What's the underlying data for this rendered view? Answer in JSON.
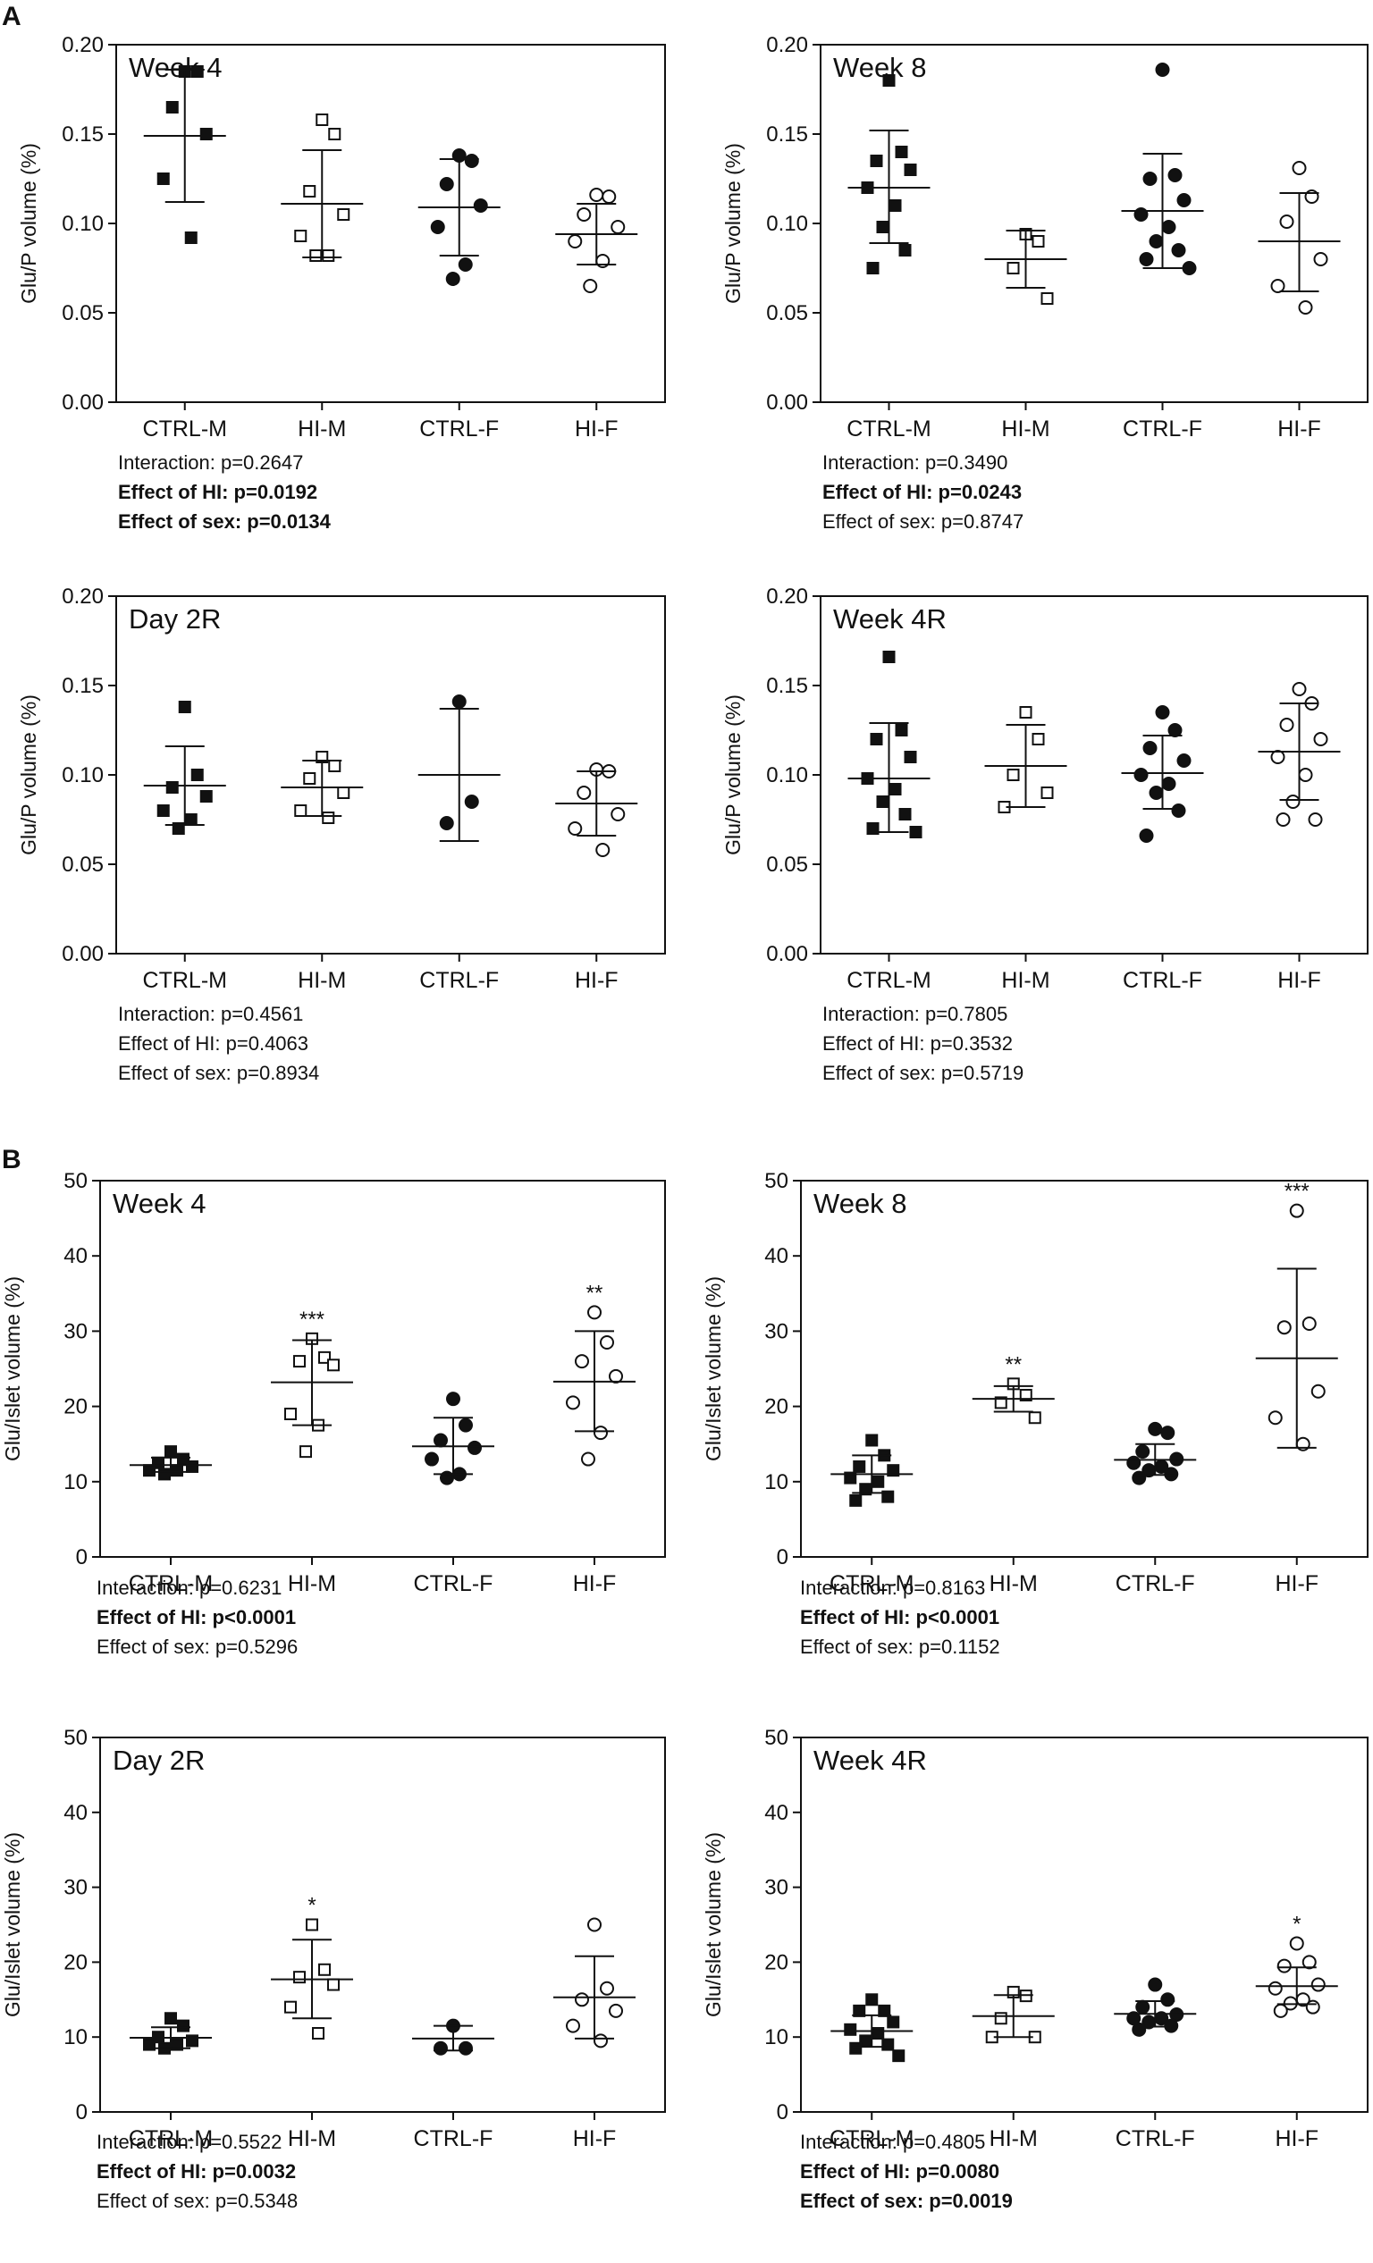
{
  "section_labels": [
    "A",
    "B"
  ],
  "chart_data": [
    {
      "type": "scatter",
      "section": "A",
      "title": "Week 4",
      "ylabel": "Glu/P volume (%)",
      "ylim": [
        0,
        0.2
      ],
      "yticks": [
        "0.00",
        "0.05",
        "0.10",
        "0.15",
        "0.20"
      ],
      "categories": [
        "CTRL-M",
        "HI-M",
        "CTRL-F",
        "HI-F"
      ],
      "groups": [
        {
          "name": "CTRL-M",
          "marker": "square-filled",
          "points": [
            0.185,
            0.185,
            0.165,
            0.15,
            0.125,
            0.092
          ],
          "mean": 0.149,
          "sd_low": 0.112,
          "sd_high": 0.186,
          "sig": ""
        },
        {
          "name": "HI-M",
          "marker": "square-open",
          "points": [
            0.158,
            0.15,
            0.118,
            0.105,
            0.093,
            0.082,
            0.082
          ],
          "mean": 0.111,
          "sd_low": 0.081,
          "sd_high": 0.141,
          "sig": ""
        },
        {
          "name": "CTRL-F",
          "marker": "circle-filled",
          "points": [
            0.138,
            0.135,
            0.122,
            0.11,
            0.098,
            0.077,
            0.069
          ],
          "mean": 0.109,
          "sd_low": 0.082,
          "sd_high": 0.136,
          "sig": ""
        },
        {
          "name": "HI-F",
          "marker": "circle-open",
          "points": [
            0.116,
            0.115,
            0.105,
            0.098,
            0.09,
            0.079,
            0.065
          ],
          "mean": 0.094,
          "sd_low": 0.077,
          "sd_high": 0.111,
          "sig": ""
        }
      ],
      "stats": [
        {
          "text": "Interaction: p=0.2647",
          "bold": false
        },
        {
          "text": "Effect of HI: p=0.0192",
          "bold": true
        },
        {
          "text": "Effect of sex: p=0.0134",
          "bold": true
        }
      ]
    },
    {
      "type": "scatter",
      "section": "A",
      "title": "Week 8",
      "ylabel": "Glu/P volume (%)",
      "ylim": [
        0,
        0.2
      ],
      "yticks": [
        "0.00",
        "0.05",
        "0.10",
        "0.15",
        "0.20"
      ],
      "categories": [
        "CTRL-M",
        "HI-M",
        "CTRL-F",
        "HI-F"
      ],
      "groups": [
        {
          "name": "CTRL-M",
          "marker": "square-filled",
          "points": [
            0.18,
            0.14,
            0.135,
            0.13,
            0.12,
            0.11,
            0.098,
            0.085,
            0.075
          ],
          "mean": 0.12,
          "sd_low": 0.089,
          "sd_high": 0.152,
          "sig": ""
        },
        {
          "name": "HI-M",
          "marker": "square-open",
          "points": [
            0.094,
            0.09,
            0.075,
            0.058
          ],
          "mean": 0.08,
          "sd_low": 0.064,
          "sd_high": 0.096,
          "sig": ""
        },
        {
          "name": "CTRL-F",
          "marker": "circle-filled",
          "points": [
            0.186,
            0.127,
            0.125,
            0.113,
            0.105,
            0.098,
            0.09,
            0.085,
            0.08,
            0.075
          ],
          "mean": 0.107,
          "sd_low": 0.075,
          "sd_high": 0.139,
          "sig": ""
        },
        {
          "name": "HI-F",
          "marker": "circle-open",
          "points": [
            0.131,
            0.115,
            0.101,
            0.08,
            0.065,
            0.053
          ],
          "mean": 0.09,
          "sd_low": 0.062,
          "sd_high": 0.117,
          "sig": ""
        }
      ],
      "stats": [
        {
          "text": "Interaction: p=0.3490",
          "bold": false
        },
        {
          "text": "Effect of HI: p=0.0243",
          "bold": true
        },
        {
          "text": "Effect of sex: p=0.8747",
          "bold": false
        }
      ]
    },
    {
      "type": "scatter",
      "section": "A",
      "title": "Day 2R",
      "ylabel": "Glu/P volume (%)",
      "ylim": [
        0,
        0.2
      ],
      "yticks": [
        "0.00",
        "0.05",
        "0.10",
        "0.15",
        "0.20"
      ],
      "categories": [
        "CTRL-M",
        "HI-M",
        "CTRL-F",
        "HI-F"
      ],
      "groups": [
        {
          "name": "CTRL-M",
          "marker": "square-filled",
          "points": [
            0.138,
            0.1,
            0.093,
            0.088,
            0.08,
            0.075,
            0.07
          ],
          "mean": 0.094,
          "sd_low": 0.072,
          "sd_high": 0.116,
          "sig": ""
        },
        {
          "name": "HI-M",
          "marker": "square-open",
          "points": [
            0.11,
            0.105,
            0.098,
            0.09,
            0.08,
            0.076
          ],
          "mean": 0.093,
          "sd_low": 0.077,
          "sd_high": 0.108,
          "sig": ""
        },
        {
          "name": "CTRL-F",
          "marker": "circle-filled",
          "points": [
            0.141,
            0.085,
            0.073
          ],
          "mean": 0.1,
          "sd_low": 0.063,
          "sd_high": 0.137,
          "sig": ""
        },
        {
          "name": "HI-F",
          "marker": "circle-open",
          "points": [
            0.103,
            0.102,
            0.09,
            0.078,
            0.07,
            0.058
          ],
          "mean": 0.084,
          "sd_low": 0.066,
          "sd_high": 0.102,
          "sig": ""
        }
      ],
      "stats": [
        {
          "text": "Interaction: p=0.4561",
          "bold": false
        },
        {
          "text": "Effect of HI: p=0.4063",
          "bold": false
        },
        {
          "text": "Effect of sex: p=0.8934",
          "bold": false
        }
      ]
    },
    {
      "type": "scatter",
      "section": "A",
      "title": "Week 4R",
      "ylabel": "Glu/P volume (%)",
      "ylim": [
        0,
        0.2
      ],
      "yticks": [
        "0.00",
        "0.05",
        "0.10",
        "0.15",
        "0.20"
      ],
      "categories": [
        "CTRL-M",
        "HI-M",
        "CTRL-F",
        "HI-F"
      ],
      "groups": [
        {
          "name": "CTRL-M",
          "marker": "square-filled",
          "points": [
            0.166,
            0.125,
            0.12,
            0.11,
            0.098,
            0.092,
            0.085,
            0.078,
            0.07,
            0.068
          ],
          "mean": 0.098,
          "sd_low": 0.068,
          "sd_high": 0.129,
          "sig": ""
        },
        {
          "name": "HI-M",
          "marker": "square-open",
          "points": [
            0.135,
            0.12,
            0.1,
            0.09,
            0.082
          ],
          "mean": 0.105,
          "sd_low": 0.082,
          "sd_high": 0.128,
          "sig": ""
        },
        {
          "name": "CTRL-F",
          "marker": "circle-filled",
          "points": [
            0.135,
            0.125,
            0.115,
            0.108,
            0.1,
            0.095,
            0.09,
            0.08,
            0.066
          ],
          "mean": 0.101,
          "sd_low": 0.081,
          "sd_high": 0.122,
          "sig": ""
        },
        {
          "name": "HI-F",
          "marker": "circle-open",
          "points": [
            0.148,
            0.14,
            0.128,
            0.12,
            0.11,
            0.1,
            0.085,
            0.075,
            0.075
          ],
          "mean": 0.113,
          "sd_low": 0.086,
          "sd_high": 0.14,
          "sig": ""
        }
      ],
      "stats": [
        {
          "text": "Interaction: p=0.7805",
          "bold": false
        },
        {
          "text": "Effect of HI: p=0.3532",
          "bold": false
        },
        {
          "text": "Effect of sex: p=0.5719",
          "bold": false
        }
      ]
    },
    {
      "type": "scatter",
      "section": "B",
      "title": "Week 4",
      "ylabel": "Glu/Islet volume (%)",
      "ylim": [
        0,
        50
      ],
      "yticks": [
        "0",
        "10",
        "20",
        "30",
        "40",
        "50"
      ],
      "categories": [
        "CTRL-M",
        "HI-M",
        "CTRL-F",
        "HI-F"
      ],
      "groups": [
        {
          "name": "CTRL-M",
          "marker": "square-filled",
          "points": [
            14.0,
            13.0,
            12.5,
            12.0,
            11.5,
            11.5,
            11.0
          ],
          "mean": 12.2,
          "sd_low": 11.3,
          "sd_high": 13.2,
          "sig": ""
        },
        {
          "name": "HI-M",
          "marker": "square-open",
          "points": [
            29.0,
            26.5,
            26.0,
            25.5,
            19.0,
            17.5,
            14.0
          ],
          "mean": 23.2,
          "sd_low": 17.5,
          "sd_high": 28.8,
          "sig": "***"
        },
        {
          "name": "CTRL-F",
          "marker": "circle-filled",
          "points": [
            21.0,
            17.5,
            15.5,
            14.5,
            13.0,
            11.0,
            10.5
          ],
          "mean": 14.7,
          "sd_low": 11.0,
          "sd_high": 18.5,
          "sig": ""
        },
        {
          "name": "HI-F",
          "marker": "circle-open",
          "points": [
            32.5,
            28.5,
            26.0,
            24.0,
            20.5,
            16.5,
            13.0
          ],
          "mean": 23.3,
          "sd_low": 16.7,
          "sd_high": 30.0,
          "sig": "**"
        }
      ],
      "stats": [
        {
          "text": "Interaction: p=0.6231",
          "bold": false
        },
        {
          "text": "Effect of HI: p<0.0001",
          "bold": true
        },
        {
          "text": "Effect of sex: p=0.5296",
          "bold": false
        }
      ]
    },
    {
      "type": "scatter",
      "section": "B",
      "title": "Week 8",
      "ylabel": "Glu/Islet volume (%)",
      "ylim": [
        0,
        50
      ],
      "yticks": [
        "0",
        "10",
        "20",
        "30",
        "40",
        "50"
      ],
      "categories": [
        "CTRL-M",
        "HI-M",
        "CTRL-F",
        "HI-F"
      ],
      "groups": [
        {
          "name": "CTRL-M",
          "marker": "square-filled",
          "points": [
            15.5,
            13.5,
            12.0,
            11.5,
            10.5,
            10.0,
            9.0,
            8.0,
            7.5
          ],
          "mean": 11.0,
          "sd_low": 8.5,
          "sd_high": 13.5,
          "sig": ""
        },
        {
          "name": "HI-M",
          "marker": "square-open",
          "points": [
            23.0,
            21.5,
            20.5,
            18.5
          ],
          "mean": 21.0,
          "sd_low": 19.3,
          "sd_high": 22.7,
          "sig": "**"
        },
        {
          "name": "CTRL-F",
          "marker": "circle-filled",
          "points": [
            17.0,
            16.5,
            14.0,
            13.0,
            12.5,
            12.0,
            11.5,
            11.0,
            10.5
          ],
          "mean": 12.9,
          "sd_low": 10.9,
          "sd_high": 15.0,
          "sig": ""
        },
        {
          "name": "HI-F",
          "marker": "circle-open",
          "points": [
            46.0,
            31.0,
            30.5,
            22.0,
            18.5,
            15.0
          ],
          "mean": 26.4,
          "sd_low": 14.5,
          "sd_high": 38.3,
          "sig": "***"
        }
      ],
      "stats": [
        {
          "text": "Interaction: p=0.8163",
          "bold": false
        },
        {
          "text": "Effect of HI: p<0.0001",
          "bold": true
        },
        {
          "text": "Effect of sex: p=0.1152",
          "bold": false
        }
      ]
    },
    {
      "type": "scatter",
      "section": "B",
      "title": "Day 2R",
      "ylabel": "Glu/Islet volume (%)",
      "ylim": [
        0,
        50
      ],
      "yticks": [
        "0",
        "10",
        "20",
        "30",
        "40",
        "50"
      ],
      "categories": [
        "CTRL-M",
        "HI-M",
        "CTRL-F",
        "HI-F"
      ],
      "groups": [
        {
          "name": "CTRL-M",
          "marker": "square-filled",
          "points": [
            12.5,
            11.5,
            10.0,
            9.5,
            9.0,
            9.0,
            8.5
          ],
          "mean": 9.9,
          "sd_low": 8.5,
          "sd_high": 11.3,
          "sig": ""
        },
        {
          "name": "HI-M",
          "marker": "square-open",
          "points": [
            25.0,
            19.0,
            18.0,
            17.0,
            14.0,
            10.5
          ],
          "mean": 17.7,
          "sd_low": 12.5,
          "sd_high": 23.0,
          "sig": "*"
        },
        {
          "name": "CTRL-F",
          "marker": "circle-filled",
          "points": [
            11.5,
            8.5,
            8.5
          ],
          "mean": 9.8,
          "sd_low": 8.2,
          "sd_high": 11.5,
          "sig": ""
        },
        {
          "name": "HI-F",
          "marker": "circle-open",
          "points": [
            25.0,
            16.5,
            15.0,
            13.5,
            11.5,
            9.5
          ],
          "mean": 15.3,
          "sd_low": 9.8,
          "sd_high": 20.8,
          "sig": ""
        }
      ],
      "stats": [
        {
          "text": "Interaction: p=0.5522",
          "bold": false
        },
        {
          "text": "Effect of HI: p=0.0032",
          "bold": true
        },
        {
          "text": "Effect of sex: p=0.5348",
          "bold": false
        }
      ]
    },
    {
      "type": "scatter",
      "section": "B",
      "title": "Week 4R",
      "ylabel": "Glu/Islet volume (%)",
      "ylim": [
        0,
        50
      ],
      "yticks": [
        "0",
        "10",
        "20",
        "30",
        "40",
        "50"
      ],
      "categories": [
        "CTRL-M",
        "HI-M",
        "CTRL-F",
        "HI-F"
      ],
      "groups": [
        {
          "name": "CTRL-M",
          "marker": "square-filled",
          "points": [
            15.0,
            13.5,
            13.5,
            12.0,
            11.0,
            10.5,
            9.5,
            9.0,
            8.5,
            7.5
          ],
          "mean": 10.8,
          "sd_low": 8.7,
          "sd_high": 12.9,
          "sig": ""
        },
        {
          "name": "HI-M",
          "marker": "square-open",
          "points": [
            16.0,
            15.5,
            12.5,
            10.0,
            10.0
          ],
          "mean": 12.8,
          "sd_low": 10.0,
          "sd_high": 15.6,
          "sig": ""
        },
        {
          "name": "CTRL-F",
          "marker": "circle-filled",
          "points": [
            17.0,
            15.0,
            14.0,
            13.0,
            12.5,
            12.5,
            12.0,
            11.5,
            11.0
          ],
          "mean": 13.1,
          "sd_low": 11.4,
          "sd_high": 14.8,
          "sig": ""
        },
        {
          "name": "HI-F",
          "marker": "circle-open",
          "points": [
            22.5,
            20.0,
            19.5,
            17.0,
            16.5,
            15.0,
            14.5,
            14.0,
            13.5
          ],
          "mean": 16.8,
          "sd_low": 14.4,
          "sd_high": 19.3,
          "sig": "*"
        }
      ],
      "stats": [
        {
          "text": "Interaction: p=0.4805",
          "bold": false
        },
        {
          "text": "Effect of HI: p=0.0080",
          "bold": true
        },
        {
          "text": "Effect of sex: p=0.0019",
          "bold": true
        }
      ]
    }
  ]
}
